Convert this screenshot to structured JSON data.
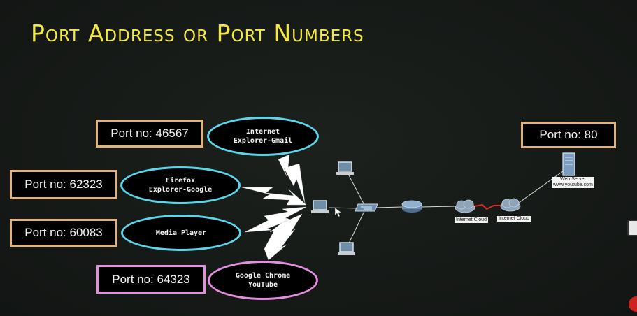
{
  "title": "Port Address or Port Numbers",
  "ports": [
    {
      "label": "Port no: 46567",
      "app_line1": "Internet",
      "app_line2": "Explorer-Gmail"
    },
    {
      "label": "Port no: 62323",
      "app_line1": "Firefox",
      "app_line2": "Explorer-Google"
    },
    {
      "label": "Port no: 60083",
      "app_line1": "Media Player",
      "app_line2": ""
    },
    {
      "label": "Port no: 64323",
      "app_line1": "Google Chrome",
      "app_line2": "YouTube"
    }
  ],
  "server_port": "Port no: 80",
  "devices": {
    "cloud1_label": "Internet Cloud",
    "cloud2_label": "Internet Cloud",
    "server_label_1": "Web Server",
    "server_label_2": "www.youtube.com"
  },
  "colors": {
    "title": "#f3e83c",
    "box_border": "#e2b27c",
    "highlight_border": "#e58ee0",
    "ellipse_border": "#5ad6ea",
    "wan_link": "#d42b2b"
  }
}
